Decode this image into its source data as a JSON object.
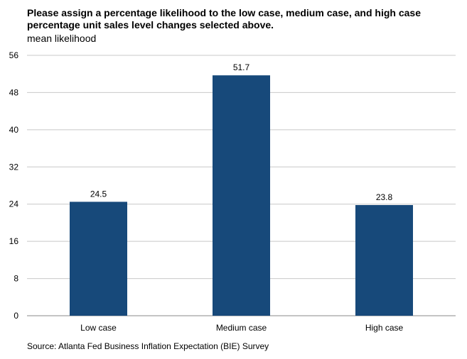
{
  "chart_data": {
    "type": "bar",
    "title": "Please assign a percentage likelihood to the low case, medium  case, and high case percentage unit sales level changes selected above.",
    "subtitle": "mean likelihood",
    "categories": [
      "Low case",
      "Medium case",
      "High case"
    ],
    "values": [
      24.5,
      51.7,
      23.8
    ],
    "data_labels": [
      "24.5",
      "51.7",
      "23.8"
    ],
    "ylim": [
      0,
      56
    ],
    "yticks": [
      0,
      8,
      16,
      24,
      32,
      40,
      48,
      56
    ],
    "xlabel": "",
    "ylabel": "",
    "grid": true,
    "bar_color": "#17497a",
    "grid_color": "#c8c8c8"
  },
  "source": "Source: Atlanta Fed Business Inflation Expectation (BIE) Survey"
}
